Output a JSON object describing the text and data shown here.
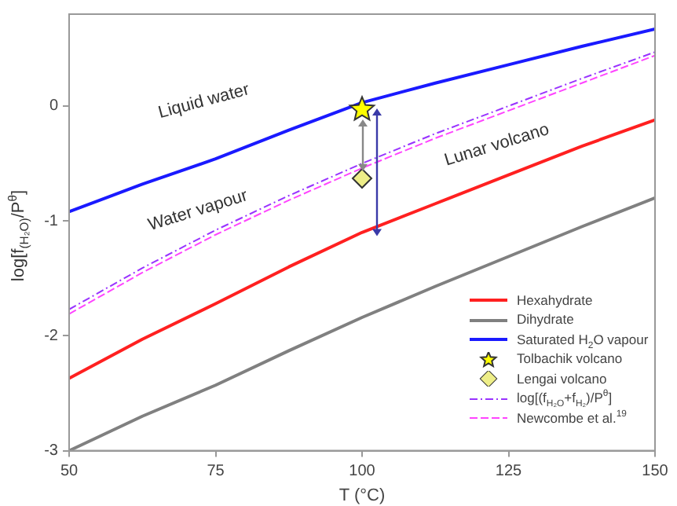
{
  "chart_data": {
    "type": "line",
    "xlabel": "T (°C)",
    "ylabel": "log[f$_{(H₂O)}$/P$^{θ}$]",
    "xlim": [
      50,
      150
    ],
    "xticks": [
      50,
      75,
      100,
      125,
      150
    ],
    "ylim": [
      -3,
      0.8
    ],
    "yticks": [
      -3,
      -2,
      -1,
      0
    ],
    "grid": false,
    "legend": "bottom right",
    "marker": "none",
    "x": [
      50,
      62.5,
      75,
      87.5,
      100,
      112.5,
      125,
      137.5,
      150
    ],
    "series": [
      {
        "name": "Hexahydrate",
        "color": "#ff2020",
        "values": [
          -2.37,
          -2.03,
          -1.72,
          -1.4,
          -1.1,
          -0.85,
          -0.6,
          -0.35,
          -0.12
        ]
      },
      {
        "name": "Dihydrate",
        "color": "#808080",
        "values": [
          -3.0,
          -2.7,
          -2.43,
          -2.13,
          -1.84,
          -1.57,
          -1.31,
          -1.05,
          -0.8
        ]
      },
      {
        "name": "Saturated H$_{2}$O vapour",
        "color": "#1a1aff",
        "values": [
          -0.92,
          -0.68,
          -0.46,
          -0.21,
          0.03,
          0.2,
          0.36,
          0.52,
          0.67
        ]
      },
      {
        "name": "Tolbachik volcano",
        "type": "scatter",
        "marker": "star",
        "color": "#ffff00",
        "x": [
          100
        ],
        "values": [
          -0.03
        ]
      },
      {
        "name": "Lengai volcano",
        "type": "scatter",
        "marker": "diamond",
        "color": "#eeee88",
        "x": [
          100
        ],
        "values": [
          -0.63
        ]
      },
      {
        "name": "log[(f$_{H₂O}$+f$_{H₂}$)/P$^{θ}$]",
        "color": "#9933ff",
        "line_style": "dashdot",
        "values": [
          -1.77,
          -1.41,
          -1.08,
          -0.78,
          -0.5,
          -0.24,
          0.0,
          0.24,
          0.47
        ]
      },
      {
        "name": "Newcombe et al.$^{19}$",
        "color": "#ff44ff",
        "line_style": "dashed",
        "values": [
          -1.81,
          -1.45,
          -1.12,
          -0.82,
          -0.54,
          -0.28,
          -0.04,
          0.2,
          0.44
        ]
      }
    ],
    "annotations": [
      "Liquid water",
      "Water vapour",
      "Lunar volcano"
    ]
  }
}
